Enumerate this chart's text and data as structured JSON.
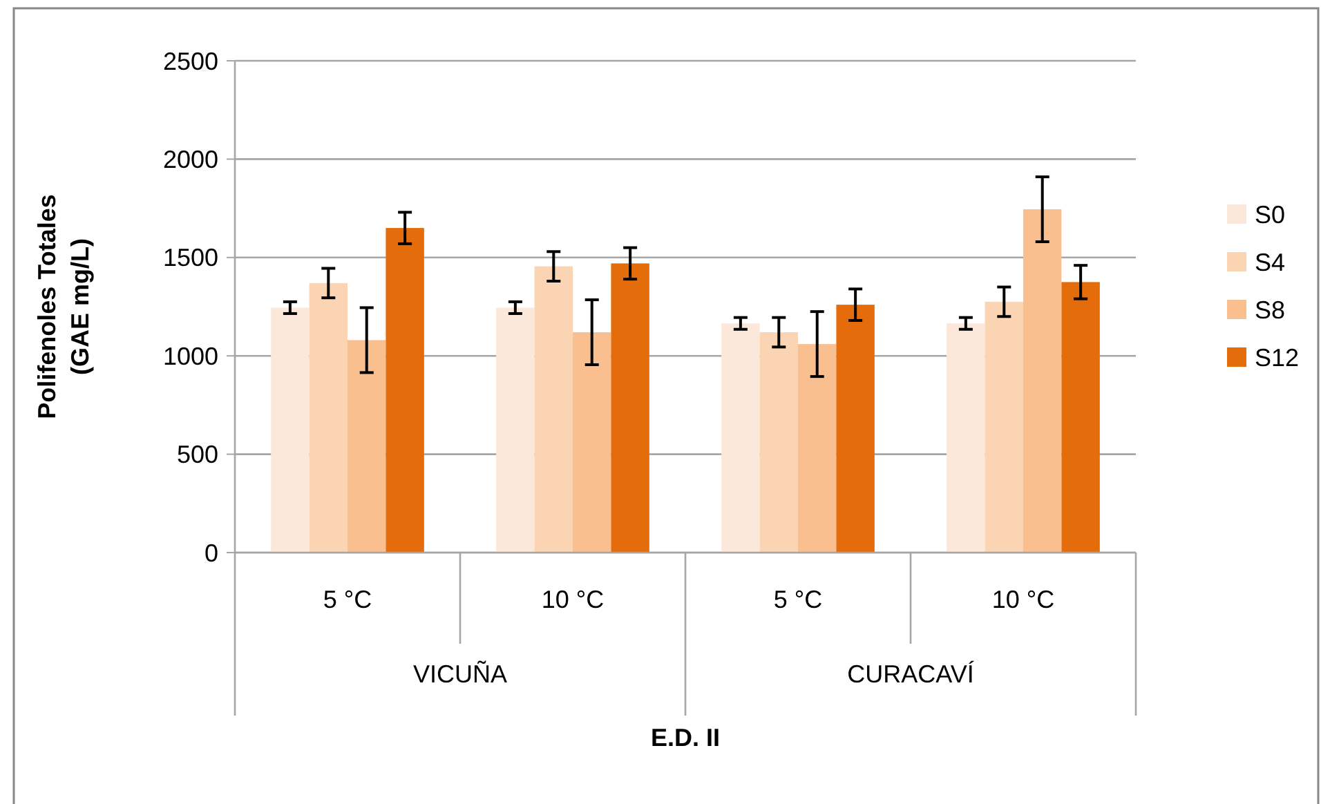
{
  "chart_data": {
    "type": "bar",
    "xlabel": "E.D. II",
    "ylabel": "Polifenoles Totales\n(GAE  mg/L)",
    "categories": [
      "5 °C",
      "10 °C",
      "5 °C",
      "10 °C"
    ],
    "annotations": [
      "VICUÑA",
      "CURACAVÍ"
    ],
    "series": [
      {
        "name": "S0",
        "color": "#fce8da",
        "values": [
          1245,
          1245,
          1165,
          1165
        ],
        "errors": [
          30,
          30,
          30,
          30
        ]
      },
      {
        "name": "S4",
        "color": "#fbd4b4",
        "values": [
          1370,
          1455,
          1120,
          1275
        ],
        "errors": [
          75,
          75,
          75,
          75
        ]
      },
      {
        "name": "S8",
        "color": "#f9bf8f",
        "values": [
          1080,
          1120,
          1060,
          1745
        ],
        "errors": [
          165,
          165,
          165,
          165
        ]
      },
      {
        "name": "S12",
        "color": "#e46c0a",
        "values": [
          1650,
          1470,
          1260,
          1375
        ],
        "errors": [
          80,
          80,
          80,
          85
        ]
      }
    ],
    "ylim": [
      0,
      2500
    ],
    "yticks": [
      0,
      500,
      1000,
      1500,
      2000,
      2500
    ],
    "grid": "y",
    "legend": "right"
  }
}
